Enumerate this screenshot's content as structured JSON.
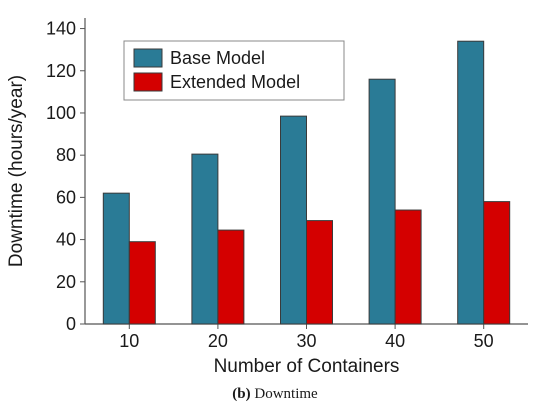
{
  "chart_data": {
    "type": "bar",
    "categories": [
      "10",
      "20",
      "30",
      "40",
      "50"
    ],
    "series": [
      {
        "name": "Base Model",
        "values": [
          62,
          80.5,
          98.5,
          116,
          134
        ],
        "color": "#2a7b96"
      },
      {
        "name": "Extended Model",
        "values": [
          39,
          44.5,
          49,
          54,
          58
        ],
        "color": "#d40000"
      }
    ],
    "xlabel": "Number of Containers",
    "ylabel": "Downtime (hours/year)",
    "ylim": [
      0,
      145
    ],
    "yticks": [
      0,
      20,
      40,
      60,
      80,
      100,
      120,
      140
    ],
    "grid": false,
    "legend_position": "top-left"
  },
  "caption": {
    "label": "(b)",
    "text": "Downtime"
  }
}
